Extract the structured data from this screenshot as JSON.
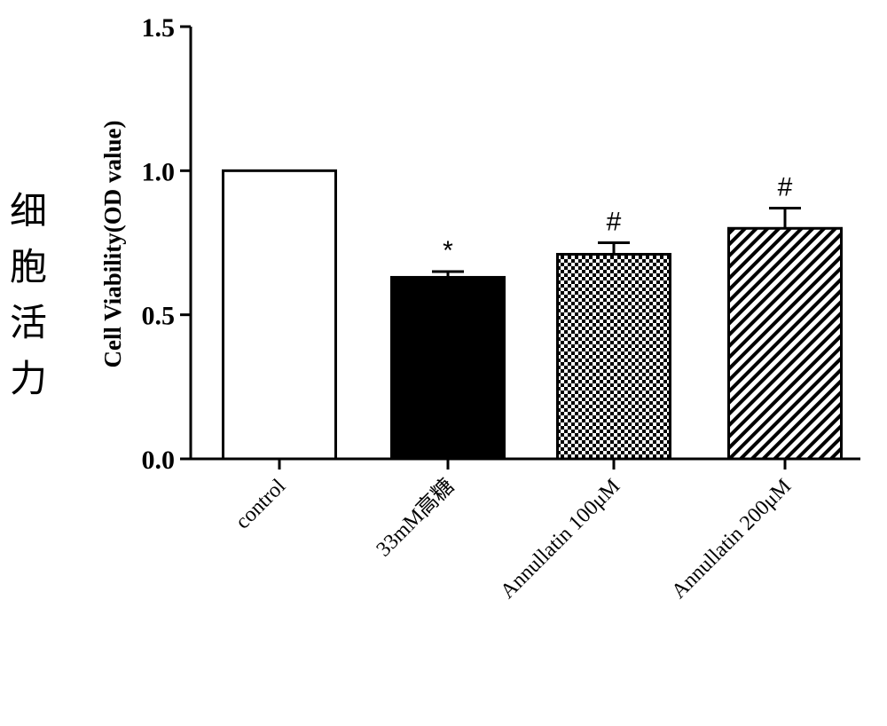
{
  "chart_data": {
    "type": "bar",
    "categories": [
      "control",
      "33mM高糖",
      "Annullatin 100μM",
      "Annullatin 200μM"
    ],
    "values": [
      1.0,
      0.63,
      0.71,
      0.8
    ],
    "errors": [
      0.0,
      0.02,
      0.04,
      0.07
    ],
    "significance": [
      "",
      "*",
      "#",
      "#"
    ],
    "bar_fills": [
      "white",
      "solid-black",
      "checkerboard",
      "diagonal-hatch"
    ],
    "ylabel": "Cell Viability(OD value)",
    "ylabel_zh": [
      "细",
      "胞",
      "活",
      "力"
    ],
    "ylim": [
      0.0,
      1.5
    ],
    "yticks": [
      "0.0",
      "0.5",
      "1.0",
      "1.5"
    ],
    "grid": false,
    "colors": {
      "bar_edge": "#000000",
      "background": "#ffffff"
    }
  }
}
